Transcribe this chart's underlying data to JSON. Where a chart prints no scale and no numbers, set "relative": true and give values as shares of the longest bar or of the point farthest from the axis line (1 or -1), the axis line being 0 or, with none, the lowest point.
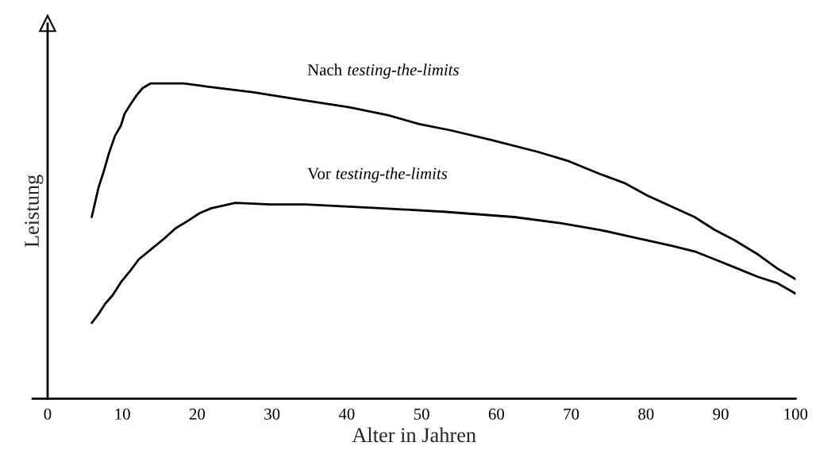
{
  "chart_data": {
    "type": "line",
    "relative": true,
    "xlabel": "Alter in Jahren",
    "ylabel": "Leistung",
    "xlim": [
      -2,
      100
    ],
    "xticks": [
      0,
      10,
      20,
      30,
      40,
      50,
      60,
      70,
      80,
      90,
      100
    ],
    "legend": false,
    "marker": "none",
    "line_style": "solid",
    "series": [
      {
        "name": "Nach testing-the-limits",
        "color": "#000000",
        "x": [
          5.9,
          6.8,
          7.5,
          8.2,
          9.0,
          9.8,
          10.3,
          11.1,
          11.9,
          12.7,
          13.8,
          15.0,
          18.2,
          21.3,
          27.4,
          31.9,
          40.3,
          45.5,
          49.7,
          53.9,
          59.2,
          65.5,
          69.7,
          73.9,
          77.1,
          80.2,
          86.5,
          89.2,
          91.8,
          95.0,
          97.6,
          100
        ],
        "values": [
          0.576,
          0.669,
          0.72,
          0.778,
          0.833,
          0.866,
          0.904,
          0.934,
          0.962,
          0.985,
          1.0,
          1.0,
          1.0,
          0.99,
          0.972,
          0.955,
          0.924,
          0.899,
          0.871,
          0.851,
          0.821,
          0.783,
          0.753,
          0.712,
          0.684,
          0.644,
          0.576,
          0.535,
          0.503,
          0.457,
          0.412,
          0.379
        ]
      },
      {
        "name": "Vor testing-the-limits",
        "color": "#000000",
        "x": [
          5.9,
          6.8,
          7.7,
          8.7,
          9.8,
          11.1,
          12.2,
          14.0,
          15.6,
          17.1,
          18.7,
          20.3,
          21.9,
          25.1,
          29.8,
          34.5,
          44.5,
          52.9,
          62.4,
          68.7,
          73.9,
          78.1,
          83.4,
          86.5,
          89.7,
          92.3,
          95.0,
          97.6,
          100
        ],
        "values": [
          0.24,
          0.268,
          0.301,
          0.328,
          0.369,
          0.407,
          0.442,
          0.477,
          0.508,
          0.54,
          0.563,
          0.588,
          0.604,
          0.621,
          0.616,
          0.616,
          0.604,
          0.593,
          0.576,
          0.556,
          0.535,
          0.513,
          0.485,
          0.467,
          0.437,
          0.412,
          0.386,
          0.366,
          0.333
        ]
      }
    ]
  }
}
